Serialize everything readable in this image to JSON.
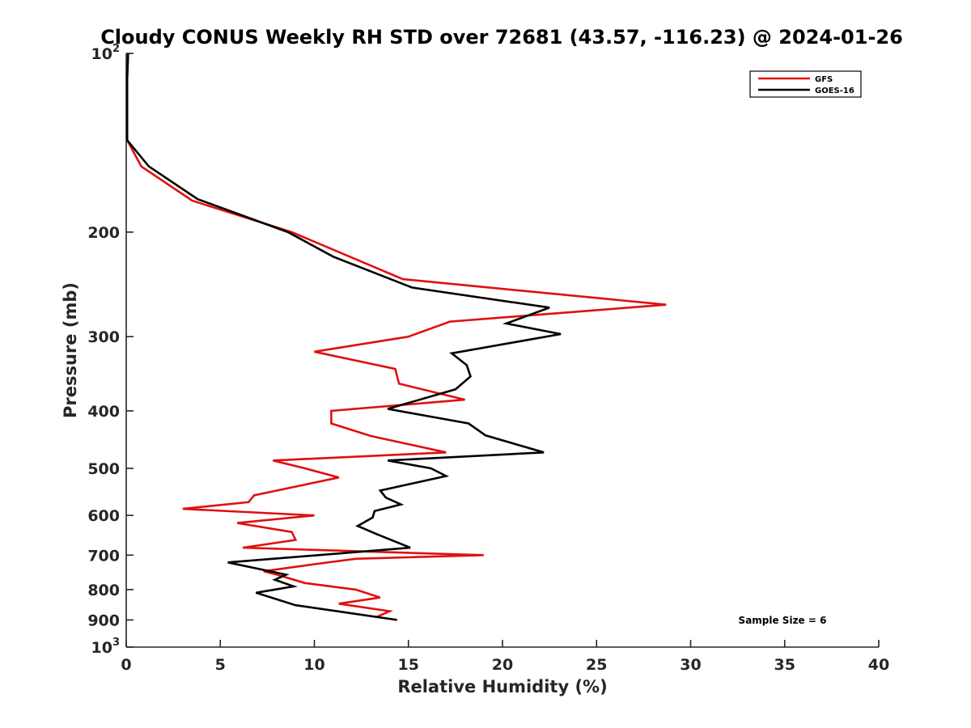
{
  "chart_data": {
    "type": "line",
    "title": "Cloudy CONUS Weekly RH STD over 72681 (43.57, -116.23) @ 2024-01-26",
    "xlabel": "Relative Humidity (%)",
    "ylabel": "Pressure (mb)",
    "xlim": [
      0,
      40
    ],
    "ylim": [
      100,
      1000
    ],
    "y_scale": "log",
    "y_reversed": true,
    "x_ticks": [
      0,
      5,
      10,
      15,
      20,
      25,
      30,
      35,
      40
    ],
    "x_tick_labels": [
      "0",
      "5",
      "10",
      "15",
      "20",
      "25",
      "30",
      "35",
      "40"
    ],
    "y_ticks": [
      100,
      200,
      300,
      400,
      500,
      600,
      700,
      800,
      900,
      1000
    ],
    "y_tick_labels": [
      {
        "base": "10",
        "sup": "2"
      },
      {
        "base": "200",
        "sup": ""
      },
      {
        "base": "300",
        "sup": ""
      },
      {
        "base": "400",
        "sup": ""
      },
      {
        "base": "500",
        "sup": ""
      },
      {
        "base": "600",
        "sup": ""
      },
      {
        "base": "700",
        "sup": ""
      },
      {
        "base": "800",
        "sup": ""
      },
      {
        "base": "900",
        "sup": ""
      },
      {
        "base": "10",
        "sup": "3"
      }
    ],
    "grid": false,
    "legend_position": "top-right",
    "annotation": "Sample Size = 6",
    "series": [
      {
        "name": "GFS",
        "color": "#e01010",
        "points": [
          [
            0.1,
            100
          ],
          [
            0.05,
            110
          ],
          [
            0.05,
            125
          ],
          [
            0.05,
            140
          ],
          [
            0.8,
            155
          ],
          [
            3.5,
            177
          ],
          [
            8.8,
            200
          ],
          [
            14.7,
            240
          ],
          [
            28.7,
            265
          ],
          [
            17.2,
            283
          ],
          [
            15.0,
            300
          ],
          [
            10.0,
            318
          ],
          [
            14.3,
            340
          ],
          [
            14.5,
            360
          ],
          [
            18.0,
            383
          ],
          [
            10.9,
            400
          ],
          [
            10.9,
            420
          ],
          [
            13.0,
            441
          ],
          [
            17.0,
            470
          ],
          [
            7.8,
            485
          ],
          [
            9.5,
            500
          ],
          [
            11.3,
            518
          ],
          [
            6.8,
            555
          ],
          [
            6.5,
            570
          ],
          [
            3.0,
            585
          ],
          [
            10.0,
            600
          ],
          [
            5.9,
            618
          ],
          [
            8.8,
            640
          ],
          [
            9.0,
            660
          ],
          [
            6.2,
            680
          ],
          [
            19.0,
            700
          ],
          [
            12.2,
            710
          ],
          [
            10.0,
            725
          ],
          [
            7.3,
            745
          ],
          [
            8.0,
            755
          ],
          [
            9.5,
            780
          ],
          [
            12.2,
            800
          ],
          [
            13.5,
            825
          ],
          [
            11.3,
            845
          ],
          [
            14.0,
            870
          ],
          [
            13.3,
            890
          ]
        ]
      },
      {
        "name": "GOES-16",
        "color": "#000000",
        "points": [
          [
            0.1,
            100
          ],
          [
            0.05,
            110
          ],
          [
            0.05,
            125
          ],
          [
            0.05,
            140
          ],
          [
            1.2,
            155
          ],
          [
            3.8,
            176
          ],
          [
            8.6,
            200
          ],
          [
            11.0,
            220
          ],
          [
            15.2,
            248
          ],
          [
            22.5,
            268
          ],
          [
            20.2,
            285
          ],
          [
            23.1,
            297
          ],
          [
            17.3,
            320
          ],
          [
            18.1,
            335
          ],
          [
            18.3,
            350
          ],
          [
            17.5,
            368
          ],
          [
            13.9,
            397
          ],
          [
            18.2,
            420
          ],
          [
            19.1,
            440
          ],
          [
            22.2,
            470
          ],
          [
            13.9,
            485
          ],
          [
            16.2,
            500
          ],
          [
            17.0,
            515
          ],
          [
            13.5,
            545
          ],
          [
            13.8,
            560
          ],
          [
            14.6,
            575
          ],
          [
            13.2,
            590
          ],
          [
            13.1,
            605
          ],
          [
            12.3,
            625
          ],
          [
            13.3,
            645
          ],
          [
            15.1,
            680
          ],
          [
            5.4,
            720
          ],
          [
            8.5,
            755
          ],
          [
            7.9,
            770
          ],
          [
            8.9,
            790
          ],
          [
            6.9,
            810
          ],
          [
            9.0,
            850
          ],
          [
            14.4,
            900
          ]
        ]
      }
    ]
  }
}
